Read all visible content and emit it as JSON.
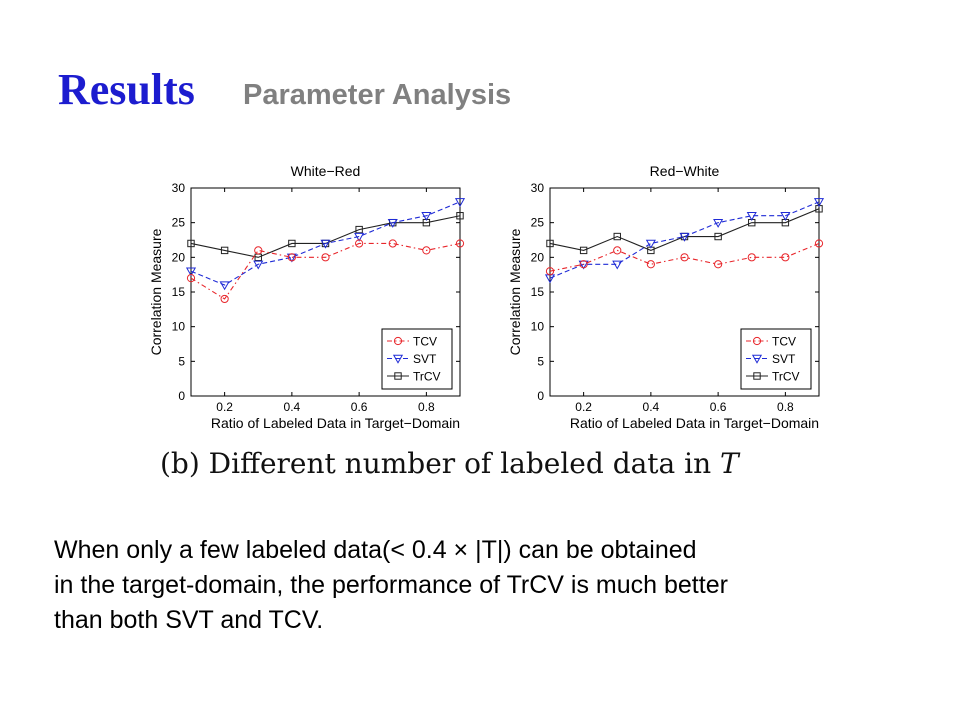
{
  "slide": {
    "title": "Results",
    "subtitle": "Parameter Analysis",
    "caption_prefix": "(b) Different number of labeled data in ",
    "caption_var": "T",
    "body_lines": [
      "When only a few labeled data(< 0.4 × |T|) can be obtained",
      "in the target-domain, the performance of TrCV is much better",
      "than both SVT and TCV."
    ]
  },
  "colors": {
    "title": "#1c1ccf",
    "subtitle": "#808080",
    "TCV": "#e8262b",
    "SVT": "#1f2bd6",
    "TrCV": "#222222"
  },
  "chart_data": [
    {
      "type": "line",
      "title": "White−Red",
      "xlabel": "Ratio of Labeled Data in Target−Domain",
      "ylabel": "Correlation Measure",
      "xlim": [
        0.1,
        0.9
      ],
      "ylim": [
        0,
        30
      ],
      "xticks": [
        0.2,
        0.4,
        0.6,
        0.8
      ],
      "xtick_labels": [
        "0.2",
        "0.4",
        "0.6",
        "0.8"
      ],
      "yticks": [
        0,
        5,
        10,
        15,
        20,
        25,
        30
      ],
      "ytick_labels": [
        "0",
        "5",
        "10",
        "15",
        "20",
        "25",
        "30"
      ],
      "grid": false,
      "legend_position": "bottom-right",
      "x": [
        0.1,
        0.2,
        0.3,
        0.4,
        0.5,
        0.6,
        0.7,
        0.8,
        0.9
      ],
      "series": [
        {
          "name": "TCV",
          "style": "dash-dot",
          "marker": "circle",
          "values": [
            17,
            14,
            21,
            20,
            20,
            22,
            22,
            21,
            22
          ]
        },
        {
          "name": "SVT",
          "style": "dashed",
          "marker": "triangle-down",
          "values": [
            18,
            16,
            19,
            20,
            22,
            23,
            25,
            26,
            28
          ]
        },
        {
          "name": "TrCV",
          "style": "solid",
          "marker": "square",
          "values": [
            22,
            21,
            20,
            22,
            22,
            24,
            25,
            25,
            26
          ]
        }
      ]
    },
    {
      "type": "line",
      "title": "Red−White",
      "xlabel": "Ratio of Labeled Data in Target−Domain",
      "ylabel": "Correlation Measure",
      "xlim": [
        0.1,
        0.9
      ],
      "ylim": [
        0,
        30
      ],
      "xticks": [
        0.2,
        0.4,
        0.6,
        0.8
      ],
      "xtick_labels": [
        "0.2",
        "0.4",
        "0.6",
        "0.8"
      ],
      "yticks": [
        0,
        5,
        10,
        15,
        20,
        25,
        30
      ],
      "ytick_labels": [
        "0",
        "5",
        "10",
        "15",
        "20",
        "25",
        "30"
      ],
      "grid": false,
      "legend_position": "bottom-right",
      "x": [
        0.1,
        0.2,
        0.3,
        0.4,
        0.5,
        0.6,
        0.7,
        0.8,
        0.9
      ],
      "series": [
        {
          "name": "TCV",
          "style": "dash-dot",
          "marker": "circle",
          "values": [
            18,
            19,
            21,
            19,
            20,
            19,
            20,
            20,
            22
          ]
        },
        {
          "name": "SVT",
          "style": "dashed",
          "marker": "triangle-down",
          "values": [
            17,
            19,
            19,
            22,
            23,
            25,
            26,
            26,
            28
          ]
        },
        {
          "name": "TrCV",
          "style": "solid",
          "marker": "square",
          "values": [
            22,
            21,
            23,
            21,
            23,
            23,
            25,
            25,
            27
          ]
        }
      ]
    }
  ]
}
